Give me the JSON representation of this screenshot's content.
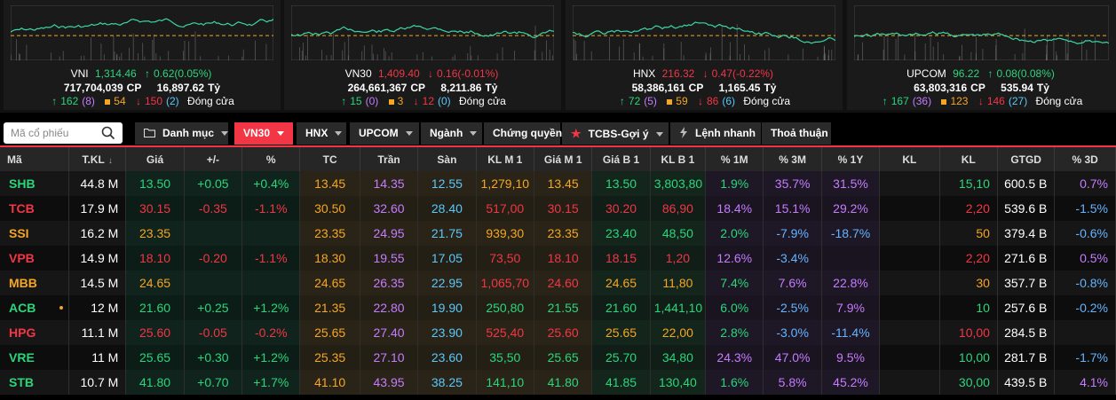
{
  "indices": [
    {
      "name": "VNI",
      "value": "1,314.46",
      "change": "0.62(0.05%)",
      "dir": "up",
      "volume": "717,704,039",
      "vol_unit": "CP",
      "turnover": "16,897.62",
      "turn_unit": "Tỷ",
      "adv": "162",
      "adv_sub": "(8)",
      "unch": "54",
      "dec": "150",
      "dec_sub": "(2)",
      "status": "Đóng cửa"
    },
    {
      "name": "VN30",
      "value": "1,409.40",
      "change": "0.16(-0.01%)",
      "dir": "dn",
      "volume": "264,661,367",
      "vol_unit": "CP",
      "turnover": "8,211.86",
      "turn_unit": "Tỷ",
      "adv": "15",
      "adv_sub": "(0)",
      "unch": "3",
      "dec": "12",
      "dec_sub": "(0)",
      "status": "Đóng cửa"
    },
    {
      "name": "HNX",
      "value": "216.32",
      "change": "0.47(-0.22%)",
      "dir": "dn",
      "volume": "58,386,161",
      "vol_unit": "CP",
      "turnover": "1,165.45",
      "turn_unit": "Tỷ",
      "adv": "72",
      "adv_sub": "(5)",
      "unch": "59",
      "dec": "86",
      "dec_sub": "(6)",
      "status": "Đóng cửa"
    },
    {
      "name": "UPCOM",
      "value": "96.22",
      "change": "0.08(0.08%)",
      "dir": "up",
      "volume": "63,803,316",
      "vol_unit": "CP",
      "turnover": "535.94",
      "turn_unit": "Tỷ",
      "adv": "167",
      "adv_sub": "(36)",
      "unch": "123",
      "dec": "146",
      "dec_sub": "(27)",
      "status": "Đóng cửa"
    }
  ],
  "search": {
    "placeholder": "Mã cổ phiếu"
  },
  "tabs": [
    {
      "label": "Danh mục",
      "caret": true
    },
    {
      "label": "VN30",
      "caret": true,
      "active": true
    },
    {
      "label": "HNX",
      "caret": true
    },
    {
      "label": "UPCOM",
      "caret": true
    },
    {
      "label": "Ngành",
      "caret": true
    },
    {
      "label": "Chứng quyền",
      "caret": false
    },
    {
      "label": "TCBS-Gợi ý",
      "caret": true
    },
    {
      "label": "Lệnh nhanh",
      "caret": false
    },
    {
      "label": "Thoả thuận",
      "caret": false
    }
  ],
  "columns": [
    "Mã",
    "T.KL",
    "Giá",
    "+/-",
    "%",
    "TC",
    "Trần",
    "Sàn",
    "KL M 1",
    "Giá M 1",
    "Giá B 1",
    "KL B 1",
    "% 1M",
    "% 3M",
    "% 1Y",
    "KL",
    "KL",
    "GTGD",
    "% 3D"
  ],
  "colors": {
    "up": "#2bd67b",
    "down": "#f23645",
    "ref": "#f5a623",
    "ceiling": "#c57cff",
    "floor": "#5ac8fa",
    "accent": "#f23645"
  },
  "rows": [
    {
      "sym": "SHB",
      "t": "up",
      "tkl": "44.8 M",
      "gia": "13.50",
      "chg": "+0.05",
      "pct": "+0.4%",
      "tc": "13.45",
      "tran": "14.35",
      "san": "12.55",
      "klm1": "1,279,10",
      "klm1t": "ref",
      "giam1": "13.45",
      "giam1t": "ref",
      "giab1": "13.50",
      "giab1t": "up",
      "klb1": "3,803,80",
      "klb1t": "up",
      "p1m": "1.9%",
      "p1mt": "up",
      "p3m": "35.7%",
      "p3mt": "ceil",
      "p1y": "31.5%",
      "p1yt": "ceil",
      "kl1": "",
      "kl2": "15,10",
      "kl2t": "up",
      "gtgd": "600.5 B",
      "p3d": "0.7%",
      "p3dt": "ceil",
      "dot": false
    },
    {
      "sym": "TCB",
      "t": "dn",
      "tkl": "17.9 M",
      "gia": "30.15",
      "chg": "-0.35",
      "pct": "-1.1%",
      "tc": "30.50",
      "tran": "32.60",
      "san": "28.40",
      "klm1": "517,00",
      "klm1t": "dn",
      "giam1": "30.15",
      "giam1t": "dn",
      "giab1": "30.20",
      "giab1t": "dn",
      "klb1": "86,90",
      "klb1t": "dn",
      "p1m": "18.4%",
      "p1mt": "ceil",
      "p3m": "15.1%",
      "p3mt": "ceil",
      "p1y": "29.2%",
      "p1yt": "ceil",
      "kl1": "",
      "kl2": "2,20",
      "kl2t": "dn",
      "gtgd": "539.6 B",
      "p3d": "-1.5%",
      "p3dt": "blue",
      "dot": false
    },
    {
      "sym": "SSI",
      "t": "ref",
      "tkl": "16.2 M",
      "gia": "23.35",
      "chg": "",
      "pct": "",
      "tc": "23.35",
      "tran": "24.95",
      "san": "21.75",
      "klm1": "939,30",
      "klm1t": "ref",
      "giam1": "23.35",
      "giam1t": "ref",
      "giab1": "23.40",
      "giab1t": "up",
      "klb1": "48,50",
      "klb1t": "up",
      "p1m": "2.0%",
      "p1mt": "up",
      "p3m": "-7.9%",
      "p3mt": "blue",
      "p1y": "-18.7%",
      "p1yt": "blue",
      "kl1": "",
      "kl2": "50",
      "kl2t": "ref",
      "gtgd": "379.4 B",
      "p3d": "-0.6%",
      "p3dt": "blue",
      "dot": false
    },
    {
      "sym": "VPB",
      "t": "dn",
      "tkl": "14.9 M",
      "gia": "18.10",
      "chg": "-0.20",
      "pct": "-1.1%",
      "tc": "18.30",
      "tran": "19.55",
      "san": "17.05",
      "klm1": "73,50",
      "klm1t": "dn",
      "giam1": "18.10",
      "giam1t": "dn",
      "giab1": "18.15",
      "giab1t": "dn",
      "klb1": "1,20",
      "klb1t": "dn",
      "p1m": "12.6%",
      "p1mt": "ceil",
      "p3m": "-3.4%",
      "p3mt": "blue",
      "p1y": "",
      "p1yt": "ceil",
      "kl1": "",
      "kl2": "2,20",
      "kl2t": "dn",
      "gtgd": "271.6 B",
      "p3d": "0.5%",
      "p3dt": "ceil",
      "dot": false
    },
    {
      "sym": "MBB",
      "t": "ref",
      "tkl": "14.5 M",
      "gia": "24.65",
      "chg": "",
      "pct": "",
      "tc": "24.65",
      "tran": "26.35",
      "san": "22.95",
      "klm1": "1,065,70",
      "klm1t": "dn",
      "giam1": "24.60",
      "giam1t": "dn",
      "giab1": "24.65",
      "giab1t": "ref",
      "klb1": "11,80",
      "klb1t": "ref",
      "p1m": "7.4%",
      "p1mt": "up",
      "p3m": "7.6%",
      "p3mt": "ceil",
      "p1y": "22.8%",
      "p1yt": "ceil",
      "kl1": "",
      "kl2": "30",
      "kl2t": "ref",
      "gtgd": "357.7 B",
      "p3d": "-0.8%",
      "p3dt": "blue",
      "dot": false
    },
    {
      "sym": "ACB",
      "t": "up",
      "tkl": "12 M",
      "gia": "21.60",
      "chg": "+0.25",
      "pct": "+1.2%",
      "tc": "21.35",
      "tran": "22.80",
      "san": "19.90",
      "klm1": "250,80",
      "klm1t": "up",
      "giam1": "21.55",
      "giam1t": "up",
      "giab1": "21.60",
      "giab1t": "up",
      "klb1": "1,441,10",
      "klb1t": "up",
      "p1m": "6.0%",
      "p1mt": "up",
      "p3m": "-2.5%",
      "p3mt": "blue",
      "p1y": "7.9%",
      "p1yt": "ceil",
      "kl1": "",
      "kl2": "10",
      "kl2t": "up",
      "gtgd": "257.6 B",
      "p3d": "-0.2%",
      "p3dt": "blue",
      "dot": true
    },
    {
      "sym": "HPG",
      "t": "dn",
      "tkl": "11.1 M",
      "gia": "25.60",
      "chg": "-0.05",
      "pct": "-0.2%",
      "tc": "25.65",
      "tran": "27.40",
      "san": "23.90",
      "klm1": "525,40",
      "klm1t": "dn",
      "giam1": "25.60",
      "giam1t": "dn",
      "giab1": "25.65",
      "giab1t": "ref",
      "klb1": "22,00",
      "klb1t": "ref",
      "p1m": "2.8%",
      "p1mt": "up",
      "p3m": "-3.0%",
      "p3mt": "blue",
      "p1y": "-11.4%",
      "p1yt": "blue",
      "kl1": "",
      "kl2": "10,00",
      "kl2t": "dn",
      "gtgd": "284.5 B",
      "p3d": "",
      "p3dt": "blue",
      "dot": false
    },
    {
      "sym": "VRE",
      "t": "up",
      "tkl": "11 M",
      "gia": "25.65",
      "chg": "+0.30",
      "pct": "+1.2%",
      "tc": "25.35",
      "tran": "27.10",
      "san": "23.60",
      "klm1": "35,50",
      "klm1t": "up",
      "giam1": "25.65",
      "giam1t": "up",
      "giab1": "25.70",
      "giab1t": "up",
      "klb1": "34,80",
      "klb1t": "up",
      "p1m": "24.3%",
      "p1mt": "ceil",
      "p3m": "47.0%",
      "p3mt": "ceil",
      "p1y": "9.5%",
      "p1yt": "ceil",
      "kl1": "",
      "kl2": "10,00",
      "kl2t": "up",
      "gtgd": "281.7 B",
      "p3d": "-1.7%",
      "p3dt": "blue",
      "dot": false
    },
    {
      "sym": "STB",
      "t": "up",
      "tkl": "10.7 M",
      "gia": "41.80",
      "chg": "+0.70",
      "pct": "+1.7%",
      "tc": "41.10",
      "tran": "43.95",
      "san": "38.25",
      "klm1": "141,10",
      "klm1t": "up",
      "giam1": "41.80",
      "giam1t": "up",
      "giab1": "41.85",
      "giab1t": "up",
      "klb1": "130,40",
      "klb1t": "up",
      "p1m": "1.6%",
      "p1mt": "up",
      "p3m": "5.8%",
      "p3mt": "ceil",
      "p1y": "45.2%",
      "p1yt": "ceil",
      "kl1": "",
      "kl2": "30,00",
      "kl2t": "up",
      "gtgd": "439.5 B",
      "p3d": "4.1%",
      "p3dt": "ceil",
      "dot": false
    }
  ]
}
